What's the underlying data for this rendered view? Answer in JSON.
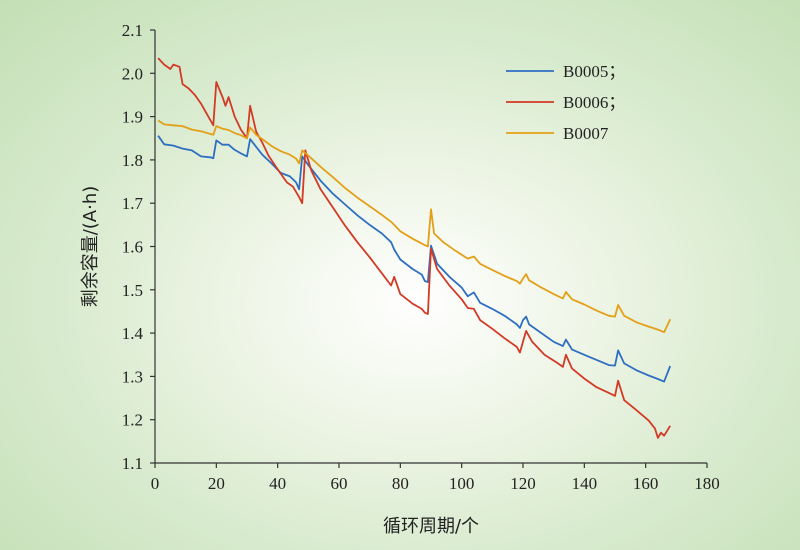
{
  "chart_data": {
    "type": "line",
    "title": "",
    "xlabel": "循环周期/个",
    "ylabel": "剩余容量/(A·h)",
    "xlim": [
      0,
      180
    ],
    "ylim": [
      1.1,
      2.1
    ],
    "xticks": [
      "0",
      "20",
      "40",
      "60",
      "80",
      "100",
      "120",
      "140",
      "160",
      "180"
    ],
    "yticks": [
      "1.1",
      "1.2",
      "1.3",
      "1.4",
      "1.5",
      "1.6",
      "1.7",
      "1.8",
      "1.9",
      "2.0",
      "2.1"
    ],
    "grid": false,
    "legend": "top-right",
    "series": [
      {
        "name": "B0005；",
        "color": "#2e6fc2",
        "points": [
          [
            1,
            1.856
          ],
          [
            3,
            1.836
          ],
          [
            6,
            1.833
          ],
          [
            9,
            1.826
          ],
          [
            12,
            1.822
          ],
          [
            15,
            1.808
          ],
          [
            18,
            1.806
          ],
          [
            19,
            1.804
          ],
          [
            20,
            1.845
          ],
          [
            22,
            1.835
          ],
          [
            24,
            1.835
          ],
          [
            26,
            1.823
          ],
          [
            28,
            1.815
          ],
          [
            30,
            1.808
          ],
          [
            31,
            1.848
          ],
          [
            33,
            1.83
          ],
          [
            35,
            1.812
          ],
          [
            38,
            1.792
          ],
          [
            41,
            1.77
          ],
          [
            44,
            1.762
          ],
          [
            46,
            1.748
          ],
          [
            47,
            1.732
          ],
          [
            48,
            1.808
          ],
          [
            50,
            1.788
          ],
          [
            54,
            1.752
          ],
          [
            58,
            1.722
          ],
          [
            62,
            1.697
          ],
          [
            66,
            1.672
          ],
          [
            70,
            1.65
          ],
          [
            74,
            1.63
          ],
          [
            77,
            1.61
          ],
          [
            78,
            1.593
          ],
          [
            80,
            1.57
          ],
          [
            84,
            1.548
          ],
          [
            87,
            1.535
          ],
          [
            88,
            1.52
          ],
          [
            89,
            1.518
          ],
          [
            90,
            1.602
          ],
          [
            92,
            1.56
          ],
          [
            96,
            1.53
          ],
          [
            100,
            1.505
          ],
          [
            102,
            1.485
          ],
          [
            104,
            1.494
          ],
          [
            106,
            1.47
          ],
          [
            110,
            1.456
          ],
          [
            114,
            1.44
          ],
          [
            118,
            1.42
          ],
          [
            119,
            1.412
          ],
          [
            120,
            1.43
          ],
          [
            121,
            1.438
          ],
          [
            122,
            1.42
          ],
          [
            126,
            1.4
          ],
          [
            130,
            1.38
          ],
          [
            133,
            1.37
          ],
          [
            134,
            1.385
          ],
          [
            136,
            1.362
          ],
          [
            140,
            1.35
          ],
          [
            144,
            1.338
          ],
          [
            148,
            1.326
          ],
          [
            150,
            1.325
          ],
          [
            151,
            1.36
          ],
          [
            153,
            1.33
          ],
          [
            157,
            1.314
          ],
          [
            161,
            1.302
          ],
          [
            164,
            1.294
          ],
          [
            166,
            1.288
          ],
          [
            168,
            1.324
          ]
        ]
      },
      {
        "name": "B0006；",
        "color": "#d23a26",
        "points": [
          [
            1,
            2.035
          ],
          [
            3,
            2.02
          ],
          [
            5,
            2.01
          ],
          [
            6,
            2.02
          ],
          [
            8,
            2.015
          ],
          [
            9,
            1.975
          ],
          [
            11,
            1.965
          ],
          [
            13,
            1.95
          ],
          [
            15,
            1.93
          ],
          [
            17,
            1.905
          ],
          [
            19,
            1.88
          ],
          [
            20,
            1.98
          ],
          [
            22,
            1.945
          ],
          [
            23,
            1.925
          ],
          [
            24,
            1.945
          ],
          [
            26,
            1.9
          ],
          [
            28,
            1.87
          ],
          [
            30,
            1.85
          ],
          [
            31,
            1.925
          ],
          [
            33,
            1.865
          ],
          [
            35,
            1.84
          ],
          [
            37,
            1.81
          ],
          [
            40,
            1.778
          ],
          [
            43,
            1.748
          ],
          [
            45,
            1.738
          ],
          [
            47,
            1.714
          ],
          [
            48,
            1.7
          ],
          [
            49,
            1.822
          ],
          [
            51,
            1.775
          ],
          [
            54,
            1.732
          ],
          [
            58,
            1.69
          ],
          [
            62,
            1.648
          ],
          [
            66,
            1.61
          ],
          [
            70,
            1.575
          ],
          [
            74,
            1.538
          ],
          [
            77,
            1.51
          ],
          [
            78,
            1.53
          ],
          [
            80,
            1.49
          ],
          [
            84,
            1.468
          ],
          [
            87,
            1.456
          ],
          [
            88,
            1.447
          ],
          [
            89,
            1.444
          ],
          [
            90,
            1.595
          ],
          [
            92,
            1.548
          ],
          [
            96,
            1.51
          ],
          [
            100,
            1.478
          ],
          [
            102,
            1.458
          ],
          [
            104,
            1.456
          ],
          [
            106,
            1.43
          ],
          [
            110,
            1.41
          ],
          [
            114,
            1.388
          ],
          [
            118,
            1.368
          ],
          [
            119,
            1.355
          ],
          [
            121,
            1.405
          ],
          [
            123,
            1.38
          ],
          [
            127,
            1.35
          ],
          [
            131,
            1.332
          ],
          [
            133,
            1.322
          ],
          [
            134,
            1.35
          ],
          [
            136,
            1.318
          ],
          [
            140,
            1.295
          ],
          [
            144,
            1.275
          ],
          [
            148,
            1.262
          ],
          [
            150,
            1.255
          ],
          [
            151,
            1.29
          ],
          [
            153,
            1.245
          ],
          [
            157,
            1.222
          ],
          [
            161,
            1.198
          ],
          [
            163,
            1.18
          ],
          [
            164,
            1.158
          ],
          [
            165,
            1.17
          ],
          [
            166,
            1.163
          ],
          [
            168,
            1.186
          ]
        ]
      },
      {
        "name": "B0007",
        "color": "#e3a017",
        "points": [
          [
            1,
            1.891
          ],
          [
            3,
            1.882
          ],
          [
            6,
            1.88
          ],
          [
            9,
            1.878
          ],
          [
            12,
            1.87
          ],
          [
            15,
            1.866
          ],
          [
            18,
            1.86
          ],
          [
            19,
            1.858
          ],
          [
            20,
            1.878
          ],
          [
            22,
            1.872
          ],
          [
            24,
            1.869
          ],
          [
            26,
            1.862
          ],
          [
            28,
            1.857
          ],
          [
            30,
            1.85
          ],
          [
            31,
            1.875
          ],
          [
            33,
            1.858
          ],
          [
            35,
            1.848
          ],
          [
            38,
            1.832
          ],
          [
            41,
            1.82
          ],
          [
            44,
            1.812
          ],
          [
            46,
            1.803
          ],
          [
            47,
            1.792
          ],
          [
            48,
            1.822
          ],
          [
            50,
            1.81
          ],
          [
            54,
            1.784
          ],
          [
            58,
            1.76
          ],
          [
            62,
            1.735
          ],
          [
            66,
            1.713
          ],
          [
            70,
            1.693
          ],
          [
            74,
            1.673
          ],
          [
            77,
            1.657
          ],
          [
            78,
            1.65
          ],
          [
            80,
            1.635
          ],
          [
            84,
            1.618
          ],
          [
            88,
            1.603
          ],
          [
            89,
            1.6
          ],
          [
            90,
            1.686
          ],
          [
            91,
            1.63
          ],
          [
            94,
            1.61
          ],
          [
            98,
            1.59
          ],
          [
            102,
            1.572
          ],
          [
            104,
            1.577
          ],
          [
            106,
            1.56
          ],
          [
            110,
            1.546
          ],
          [
            114,
            1.532
          ],
          [
            118,
            1.52
          ],
          [
            119,
            1.514
          ],
          [
            120,
            1.526
          ],
          [
            121,
            1.536
          ],
          [
            122,
            1.522
          ],
          [
            126,
            1.505
          ],
          [
            130,
            1.49
          ],
          [
            133,
            1.48
          ],
          [
            134,
            1.495
          ],
          [
            136,
            1.478
          ],
          [
            140,
            1.466
          ],
          [
            144,
            1.452
          ],
          [
            148,
            1.44
          ],
          [
            150,
            1.438
          ],
          [
            151,
            1.465
          ],
          [
            153,
            1.44
          ],
          [
            157,
            1.425
          ],
          [
            161,
            1.415
          ],
          [
            164,
            1.408
          ],
          [
            166,
            1.402
          ],
          [
            168,
            1.432
          ]
        ]
      }
    ]
  }
}
